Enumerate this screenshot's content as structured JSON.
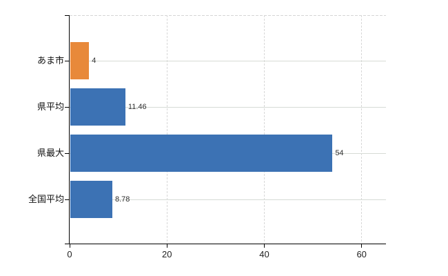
{
  "chart_data": {
    "type": "bar",
    "orientation": "horizontal",
    "title": "",
    "categories": [
      "あま市",
      "県平均",
      "県最大",
      "全国平均"
    ],
    "values": [
      4,
      11.46,
      54,
      8.78
    ],
    "data_labels": [
      "4",
      "11.46",
      "54",
      "8.78"
    ],
    "series_colors": [
      "#e8893a",
      "#3c72b4",
      "#3c72b4",
      "#3c72b4"
    ],
    "xticks": [
      0,
      20,
      40,
      60
    ],
    "xtick_labels": [
      "0",
      "20",
      "40",
      "60"
    ],
    "xlim": [
      0,
      65
    ],
    "xlabel": "",
    "ylabel": "",
    "grid": true,
    "legend": null,
    "colors": {
      "accent_bar": "#e8893a",
      "default_bar": "#3c72b4",
      "gridline": "#d6dbd5",
      "axis": "#000000",
      "background": "#ffffff",
      "text": "#2f2f2f"
    }
  }
}
